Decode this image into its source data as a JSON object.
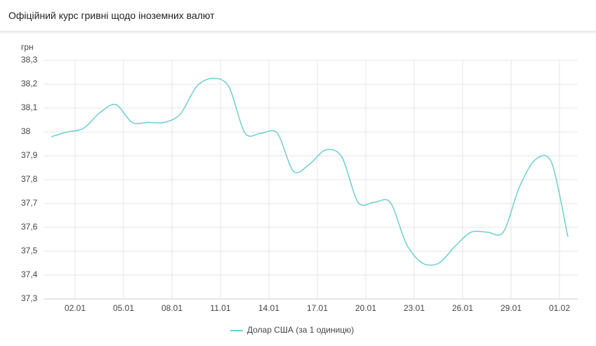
{
  "chart_data": {
    "type": "line",
    "title": "Офіційний курс гривні щодо іноземних валют",
    "y_label": "грн",
    "categories": [
      null,
      "02.01",
      null,
      null,
      "05.01",
      null,
      null,
      "08.01",
      null,
      null,
      "11.01",
      null,
      null,
      "14.01",
      null,
      null,
      "17.01",
      null,
      null,
      "20.01",
      null,
      null,
      "23.01",
      null,
      null,
      "26.01",
      null,
      null,
      "29.01",
      null,
      null,
      "01.02",
      null
    ],
    "series": [
      {
        "name": "Долар США (за 1 одиницю)",
        "color": "#6fcdd0",
        "values": [
          37.98,
          38.0,
          38.015,
          38.08,
          38.115,
          38.04,
          38.04,
          38.04,
          38.075,
          38.19,
          38.225,
          38.19,
          37.995,
          37.995,
          37.995,
          37.835,
          37.865,
          37.925,
          37.895,
          37.705,
          37.705,
          37.705,
          37.53,
          37.45,
          37.45,
          37.52,
          37.58,
          37.58,
          37.58,
          37.77,
          37.885,
          37.87,
          37.56
        ]
      }
    ],
    "ylim": [
      37.3,
      38.3
    ],
    "yticks": [
      {
        "value": 37.3,
        "label": "37,3"
      },
      {
        "value": 37.4,
        "label": "37,4"
      },
      {
        "value": 37.5,
        "label": "37,5"
      },
      {
        "value": 37.6,
        "label": "37,6"
      },
      {
        "value": 37.7,
        "label": "37,7"
      },
      {
        "value": 37.8,
        "label": "37,8"
      },
      {
        "value": 37.9,
        "label": "37,9"
      },
      38,
      {
        "value": 38.1,
        "label": "38,1"
      },
      {
        "value": 38.2,
        "label": "38,2"
      },
      {
        "value": 38.3,
        "label": "38,3"
      }
    ],
    "grid": true,
    "legend": "bottom"
  }
}
